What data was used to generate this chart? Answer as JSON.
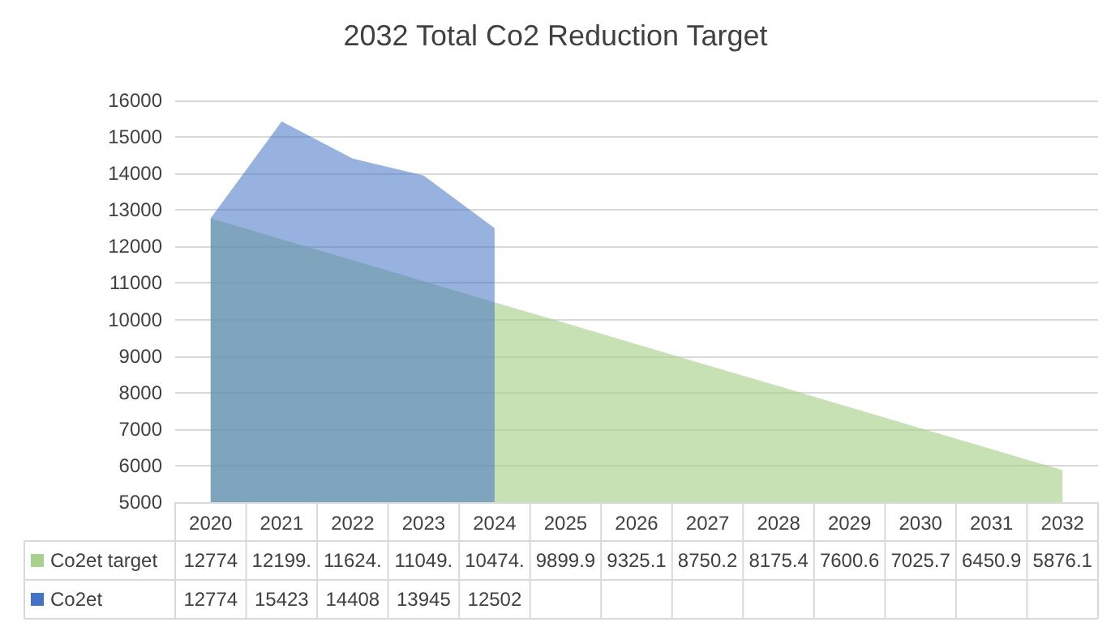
{
  "chart_data": {
    "type": "area",
    "title": "2032 Total Co2 Reduction Target",
    "categories": [
      "2020",
      "2021",
      "2022",
      "2023",
      "2024",
      "2025",
      "2026",
      "2027",
      "2028",
      "2029",
      "2030",
      "2031",
      "2032"
    ],
    "series": [
      {
        "name": "Co2et target",
        "color": "#a9d18e",
        "values": [
          12774,
          12199,
          11624,
          11049,
          10474,
          9899.9,
          9325.1,
          8750.2,
          8175.4,
          7600.6,
          7025.7,
          6450.9,
          5876.1
        ],
        "value_labels": [
          "12774",
          "12199.",
          "11624.",
          "11049.",
          "10474.",
          "9899.9",
          "9325.1",
          "8750.2",
          "8175.4",
          "7600.6",
          "7025.7",
          "6450.9",
          "5876.1"
        ]
      },
      {
        "name": "Co2et",
        "color": "#4472c4",
        "values": [
          12774,
          15423,
          14408,
          13945,
          12502,
          null,
          null,
          null,
          null,
          null,
          null,
          null,
          null
        ],
        "value_labels": [
          "12774",
          "15423",
          "14408",
          "13945",
          "12502",
          null,
          null,
          null,
          null,
          null,
          null,
          null,
          null
        ]
      }
    ],
    "ylim": [
      5000,
      16000
    ],
    "yticks": [
      5000,
      6000,
      7000,
      8000,
      9000,
      10000,
      11000,
      12000,
      13000,
      14000,
      15000,
      16000
    ],
    "grid": "y",
    "legend": "bottom left"
  }
}
